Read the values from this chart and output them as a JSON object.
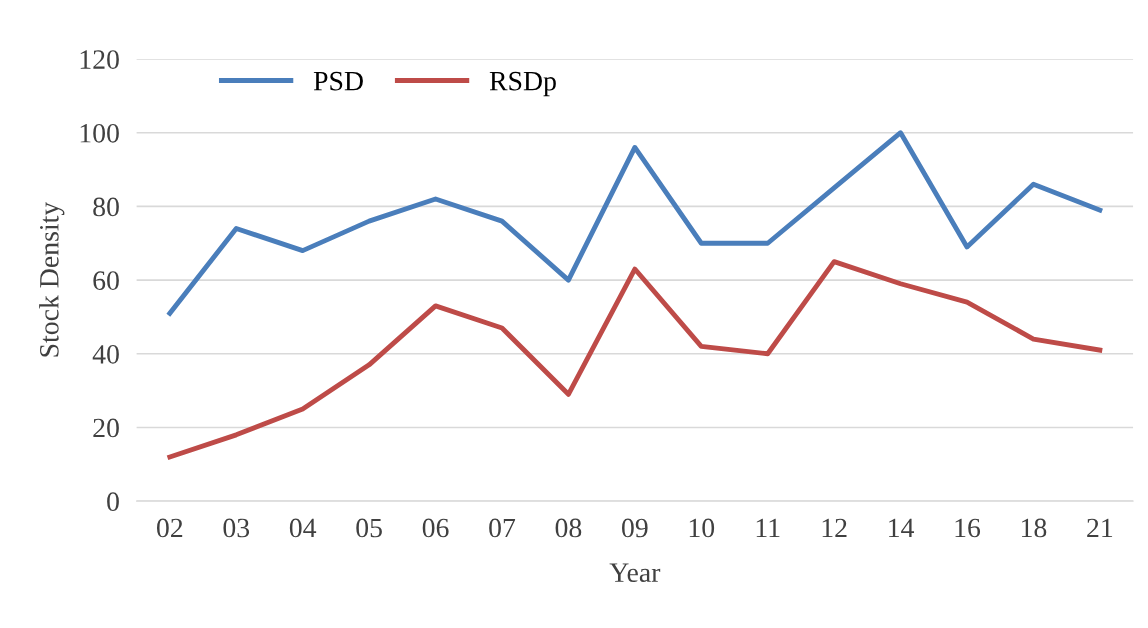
{
  "chart_data": {
    "type": "line",
    "xlabel": "Year",
    "ylabel": "Stock Density",
    "categories": [
      "02",
      "03",
      "04",
      "05",
      "06",
      "07",
      "08",
      "09",
      "10",
      "11",
      "12",
      "14",
      "16",
      "18",
      "21"
    ],
    "series": [
      {
        "name": "PSD",
        "color": "#4a7ebb",
        "values": [
          51,
          74,
          68,
          76,
          82,
          76,
          60,
          96,
          70,
          70,
          85,
          100,
          69,
          86,
          79
        ]
      },
      {
        "name": "RSDp",
        "color": "#be4b48",
        "values": [
          12,
          18,
          25,
          37,
          53,
          47,
          29,
          63,
          42,
          40,
          65,
          59,
          54,
          44,
          41
        ]
      }
    ],
    "ylim": [
      0,
      120
    ],
    "yticks": [
      0,
      20,
      40,
      60,
      80,
      100,
      120
    ],
    "grid": "y",
    "legend": "top left",
    "marker": "none",
    "line_style": "solid"
  }
}
